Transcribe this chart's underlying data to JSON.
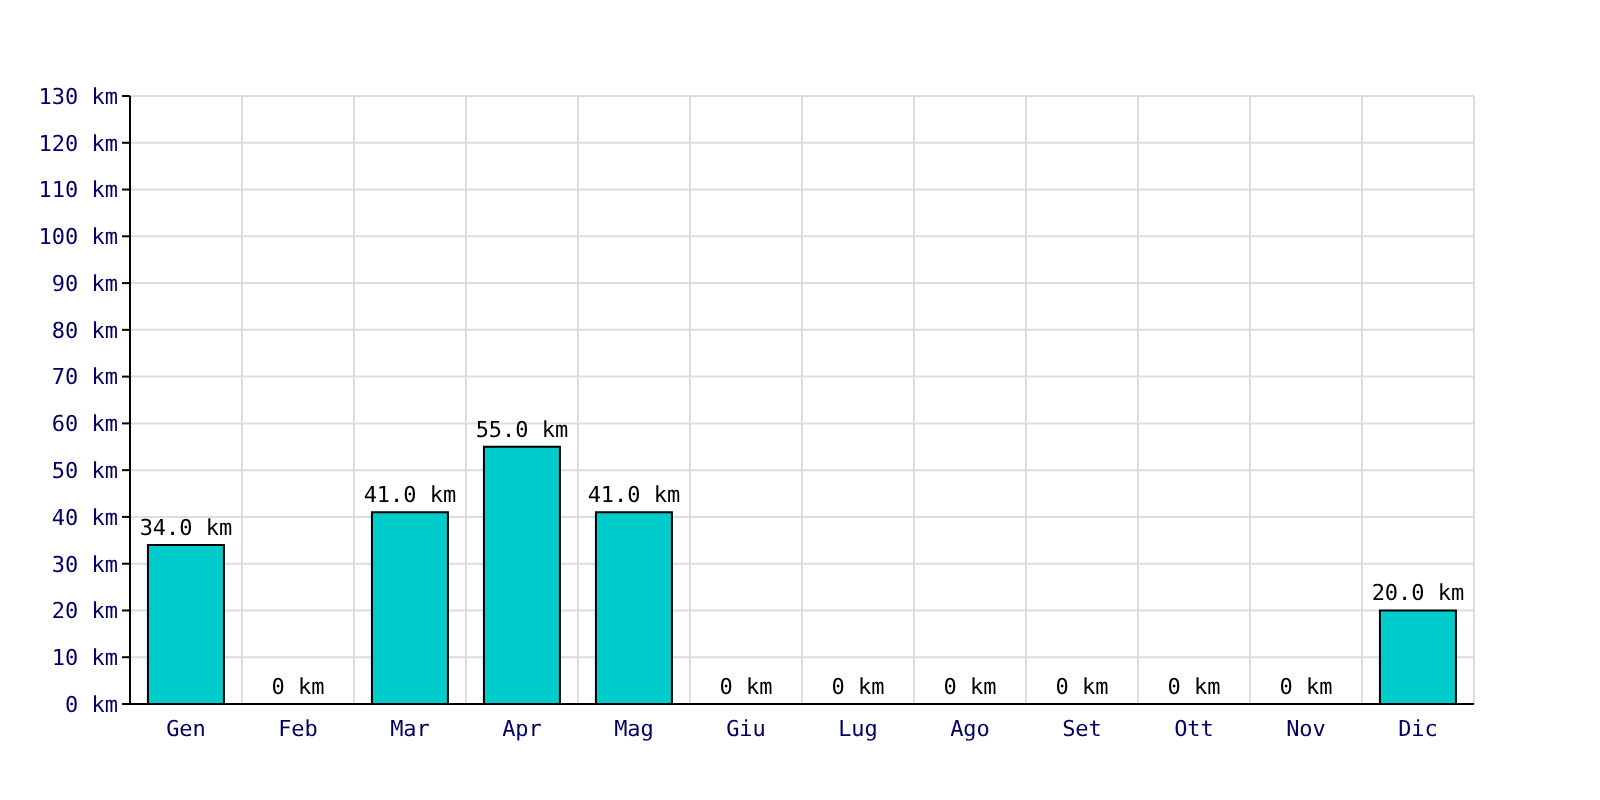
{
  "chart_data": {
    "type": "bar",
    "categories": [
      "Gen",
      "Feb",
      "Mar",
      "Apr",
      "Mag",
      "Giu",
      "Lug",
      "Ago",
      "Set",
      "Ott",
      "Nov",
      "Dic"
    ],
    "values": [
      34,
      0,
      41,
      55,
      41,
      0,
      0,
      0,
      0,
      0,
      0,
      20
    ],
    "value_labels": [
      "34.0 km",
      "0 km",
      "41.0 km",
      "55.0 km",
      "41.0 km",
      "0 km",
      "0 km",
      "0 km",
      "0 km",
      "0 km",
      "0 km",
      "20.0 km"
    ],
    "color": "#00cccc",
    "ylim": [
      0,
      130
    ],
    "yticks": [
      {
        "value": 0,
        "label": "0 km"
      },
      {
        "value": 10,
        "label": "10 km"
      },
      {
        "value": 20,
        "label": "20 km"
      },
      {
        "value": 30,
        "label": "30 km"
      },
      {
        "value": 40,
        "label": "40 km"
      },
      {
        "value": 50,
        "label": "50 km"
      },
      {
        "value": 60,
        "label": "60 km"
      },
      {
        "value": 70,
        "label": "70 km"
      },
      {
        "value": 80,
        "label": "80 km"
      },
      {
        "value": 90,
        "label": "90 km"
      },
      {
        "value": 100,
        "label": "100 km"
      },
      {
        "value": 110,
        "label": "110 km"
      },
      {
        "value": 120,
        "label": "120 km"
      },
      {
        "value": 130,
        "label": "130 km"
      }
    ],
    "grid": true
  }
}
